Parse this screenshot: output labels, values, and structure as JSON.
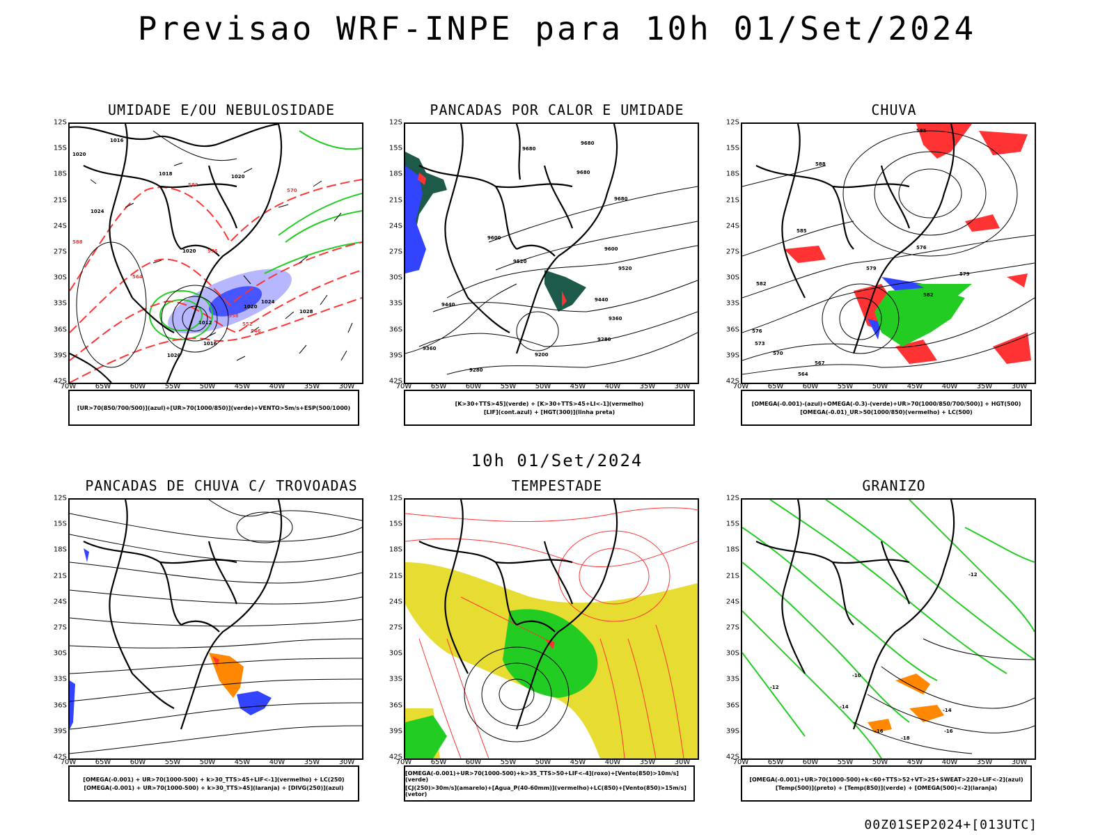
{
  "title": "Previsao WRF-INPE  para 10h 01/Set/2024",
  "subtitle": "10h 01/Set/2024",
  "footer": "00Z01SEP2024+[013UTC]",
  "axes": {
    "lat_labels": [
      "12S",
      "15S",
      "18S",
      "21S",
      "24S",
      "27S",
      "30S",
      "33S",
      "36S",
      "39S",
      "42S"
    ],
    "lon_labels": [
      "70W",
      "65W",
      "60W",
      "55W",
      "50W",
      "45W",
      "40W",
      "35W",
      "30W"
    ]
  },
  "colors": {
    "red": "#ff3333",
    "green": "#22cc22",
    "blue": "#3344ff",
    "yellow": "#e6dc32",
    "darkgreen": "#1e5a4a",
    "orange": "#ff8800"
  },
  "panels": [
    {
      "title": "UMIDADE E/OU NEBULOSIDADE",
      "legend": [
        "[UR>70(850/700/500)](azul)+[UR>70(1000/850)](verde)+VENTO>5m/s+ESP(500/1000)"
      ],
      "labels": [
        "1016",
        "1020",
        "1018",
        "1024",
        "1020",
        "1028",
        "1020",
        "1024",
        "1012",
        "1016",
        "1020",
        "1020",
        "570",
        "576",
        "582",
        "588",
        "564",
        "558",
        "552",
        "546"
      ]
    },
    {
      "title": "PANCADAS POR CALOR E UMIDADE",
      "legend": [
        "[K>30+TTS>45](verde) + [K>30+TTS>45+LI<-1](vermelho)",
        "[LIF](cont.azul) + [HGT(300)](linha preta)"
      ],
      "labels": [
        "9680",
        "9680",
        "9680",
        "9600",
        "9600",
        "9520",
        "9520",
        "9440",
        "9440",
        "9360",
        "9360",
        "9280",
        "9280",
        "9200",
        "9680"
      ]
    },
    {
      "title": "CHUVA",
      "legend": [
        "[OMEGA(-0.001)-(azul)+OMEGA(-0.3)-(verde)+UR>70(1000/850/700/500)] + HGT(500)",
        "[OMEGA(-0.01)_UR>50(1000/850)(vermelho) + LC(500)"
      ],
      "labels": [
        "585",
        "588",
        "585",
        "582",
        "579",
        "576",
        "573",
        "570",
        "567",
        "564",
        "576",
        "579",
        "582"
      ]
    },
    {
      "title": "PANCADAS DE CHUVA C/ TROVOADAS",
      "legend": [
        "[OMEGA(-0.001) + UR>70(1000-500) + k>30_TTS>45+LIF<-1](vermelho) + LC(250)",
        "[OMEGA(-0.001) + UR>70(1000-500) + k>30_TTS>45](laranja) + [DIVG(250)](azul)"
      ],
      "labels": []
    },
    {
      "title": "TEMPESTADE",
      "legend": [
        "[OMEGA(-0.001)+UR>70(1000-500)+k>35_TTS>50+LIF<-4](roxo)+[Vento(850)>10m/s](verde)",
        "[CJ(250)>30m/s](amarelo)+[Agua_P(40-60mm)](vermelho)+LC(850)+[Vento(850)>15m/s](vetor)"
      ],
      "labels": []
    },
    {
      "title": "GRANIZO",
      "legend": [
        "[OMEGA(-0.001)+UR>70(1000-500)+k<60+TTS>52+VT>25+SWEAT>220+LIF<-2](azul)",
        "[Temp(500)](preto) + [Temp(850)](verde) + [OMEGA(500)<-2](laranja)"
      ],
      "labels": [
        "-12",
        "-10",
        "-14",
        "-16",
        "-18",
        "-12",
        "-16",
        "-14"
      ]
    }
  ]
}
